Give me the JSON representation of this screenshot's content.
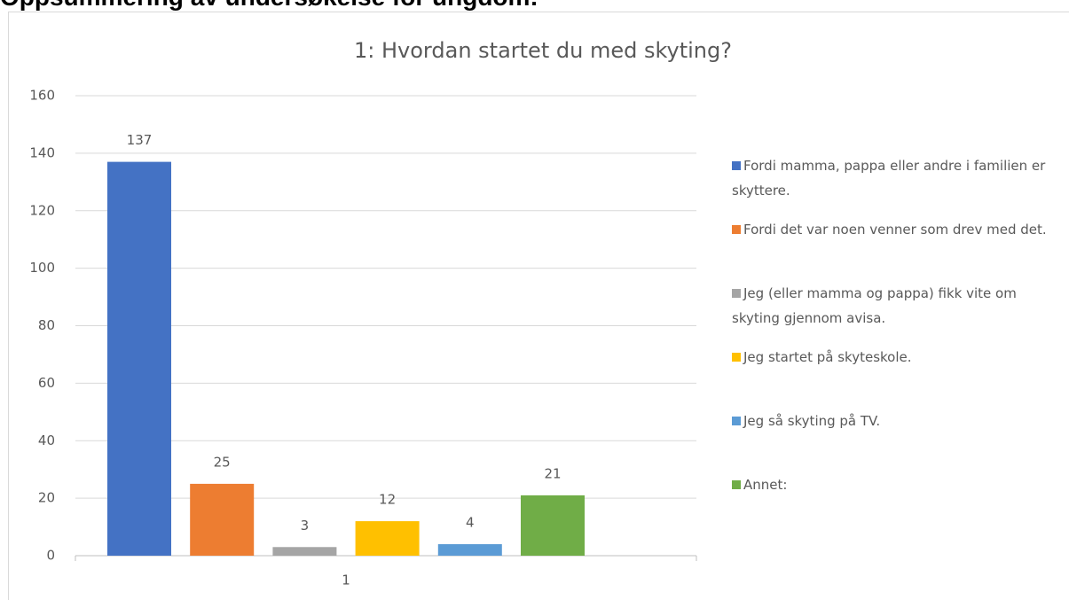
{
  "page_title": "Oppsummering av undersøkelse for ungdom:",
  "chart_data": {
    "type": "bar",
    "title": "1: Hvordan startet du med skyting?",
    "categories": [
      "1"
    ],
    "series": [
      {
        "name": "Fordi mamma, pappa eller andre i familien er skyttere.",
        "color": "#4472c4",
        "values": [
          137
        ]
      },
      {
        "name": "Fordi det var noen venner som drev med det.",
        "color": "#ed7d31",
        "values": [
          25
        ]
      },
      {
        "name": "Jeg (eller mamma og pappa) fikk vite om skyting gjennom avisa.",
        "color": "#a5a5a5",
        "values": [
          3
        ]
      },
      {
        "name": "Jeg startet på skyteskole.",
        "color": "#ffc000",
        "values": [
          12
        ]
      },
      {
        "name": "Jeg så skyting på TV.",
        "color": "#5b9bd5",
        "values": [
          4
        ]
      },
      {
        "name": "Annet:",
        "color": "#70ad47",
        "values": [
          21
        ]
      }
    ],
    "ylim": [
      0,
      160
    ],
    "yticks": [
      0,
      20,
      40,
      60,
      80,
      100,
      120,
      140,
      160
    ],
    "grid": true,
    "legend": "right",
    "data_labels": true
  }
}
